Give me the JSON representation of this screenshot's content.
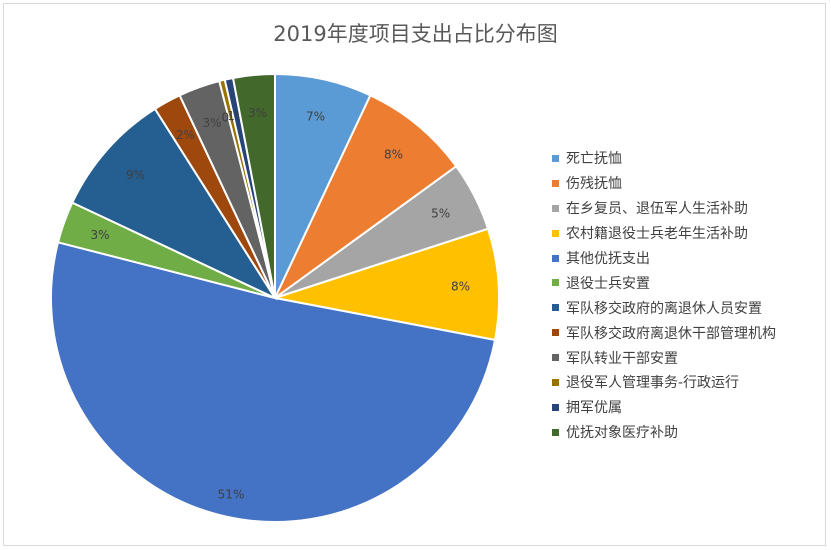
{
  "chart_data": {
    "type": "pie",
    "title": "2019年度项目支出占比分布图",
    "legend_position": "right",
    "slices": [
      {
        "label": "死亡抚恤",
        "value": 7,
        "value_label": "7%",
        "color": "#5B9BD5"
      },
      {
        "label": "伤残抚恤",
        "value": 8,
        "value_label": "8%",
        "color": "#ED7D31"
      },
      {
        "label": "在乡复员、退伍军人生活补助",
        "value": 5,
        "value_label": "5%",
        "color": "#A5A5A5"
      },
      {
        "label": "农村籍退役士兵老年生活补助",
        "value": 8,
        "value_label": "8%",
        "color": "#FFC000"
      },
      {
        "label": "其他优抚支出",
        "value": 51,
        "value_label": "51%",
        "color": "#4472C4"
      },
      {
        "label": "退役士兵安置",
        "value": 3,
        "value_label": "3%",
        "color": "#70AD47"
      },
      {
        "label": "军队移交政府的离退休人员安置",
        "value": 9,
        "value_label": "9%",
        "color": "#255E91"
      },
      {
        "label": "军队移交政府离退休干部管理机构",
        "value": 2,
        "value_label": "2%",
        "color": "#9E480E"
      },
      {
        "label": "军队转业干部安置",
        "value": 3,
        "value_label": "3%",
        "color": "#636363"
      },
      {
        "label": "退役军人管理事务-行政运行",
        "value": 0.4,
        "value_label": "0%",
        "color": "#997300"
      },
      {
        "label": "拥军优属",
        "value": 0.6,
        "value_label": "1%",
        "color": "#264478"
      },
      {
        "label": "优抚对象医疗补助",
        "value": 3,
        "value_label": "3%",
        "color": "#43682B"
      }
    ]
  }
}
